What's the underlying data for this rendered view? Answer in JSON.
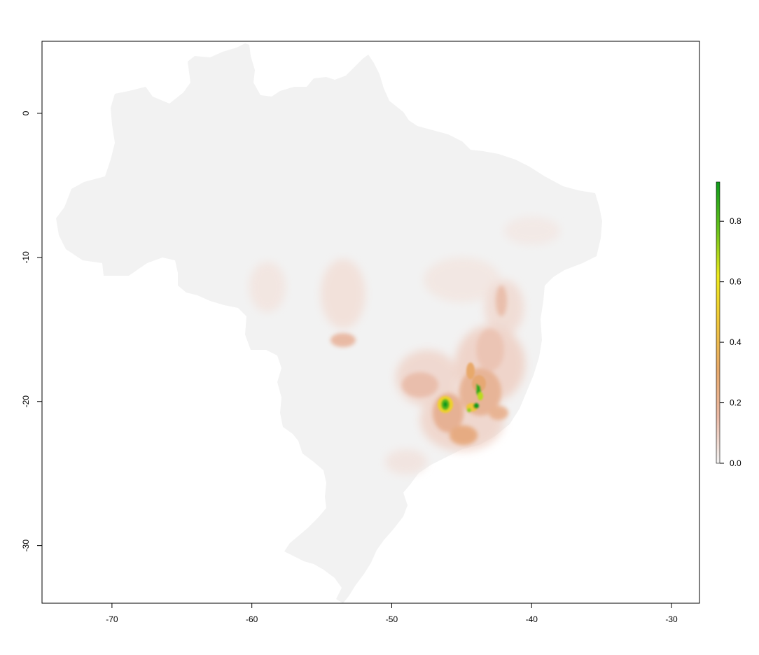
{
  "map": {
    "x_axis": {
      "range": [
        -75,
        -28
      ],
      "ticks": [
        -70,
        -60,
        -50,
        -40,
        -30
      ],
      "tick_labels": [
        "-70",
        "-60",
        "-50",
        "-40",
        "-30"
      ]
    },
    "y_axis": {
      "range": [
        -34,
        5
      ],
      "ticks": [
        0,
        -10,
        -20,
        -30
      ],
      "tick_labels": [
        "0",
        "-10",
        "-20",
        "-30"
      ]
    },
    "legend": {
      "placement": "right",
      "range": [
        0.0,
        0.93
      ],
      "ticks": [
        0.0,
        0.2,
        0.4,
        0.6,
        0.8
      ],
      "tick_labels": [
        "0.0",
        "0.2",
        "0.4",
        "0.6",
        "0.8"
      ],
      "colors": [
        "#f2f2f2",
        "#ebb9a5",
        "#e8a96a",
        "#f0c63a",
        "#eeea1c",
        "#66c21a",
        "#0d9a1a"
      ]
    },
    "colors": {
      "land": "#f2f2f2",
      "low": "#f0d4ca",
      "mid": "#e8aa85",
      "high": "#f0c63a",
      "peak": "#0d9a1a"
    }
  }
}
